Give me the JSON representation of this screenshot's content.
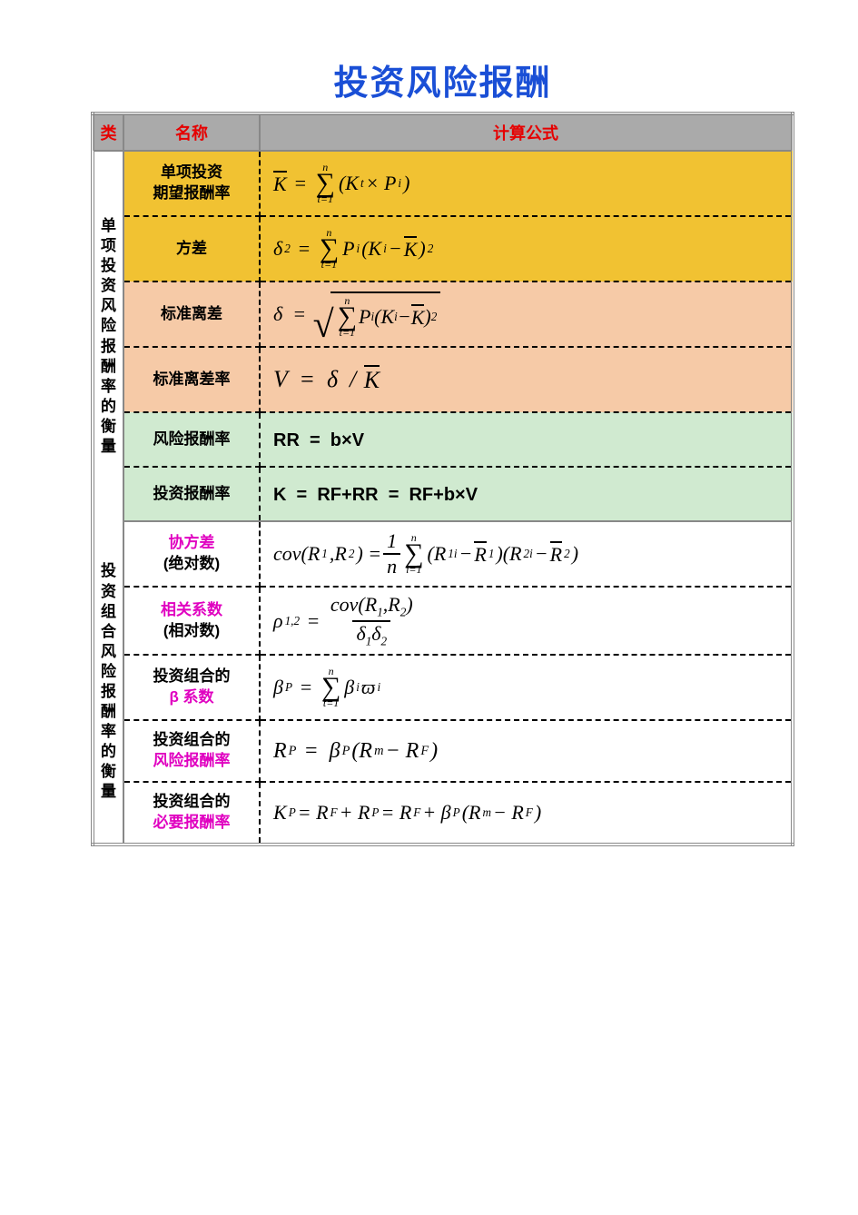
{
  "title": "投资风险报酬",
  "headers": {
    "cat": "类",
    "name": "名称",
    "formula": "计算公式"
  },
  "colors": {
    "title": "#1a4fd6",
    "header_bg": "#aaaaaa",
    "header_text": "#e60000",
    "row_yellow": "#f1c232",
    "row_peach": "#f6caa7",
    "row_green": "#d0ead0",
    "row_white": "#ffffff",
    "magenta": "#e000c0",
    "border": "#888888"
  },
  "sections": [
    {
      "cat_label": "单项投资风险报酬率的衡量",
      "rows": [
        {
          "name_lines": [
            "单项投资",
            "期望报酬率"
          ],
          "bg": "row_yellow",
          "formula_key": "f_expected"
        },
        {
          "name_lines": [
            "方差"
          ],
          "bg": "row_yellow",
          "formula_key": "f_var"
        },
        {
          "name_lines": [
            "标准离差"
          ],
          "bg": "row_peach",
          "formula_key": "f_std"
        },
        {
          "name_lines": [
            "标准离差率"
          ],
          "bg": "row_peach",
          "formula_key": "f_cv"
        },
        {
          "name_lines": [
            "风险报酬率"
          ],
          "bg": "row_green",
          "formula_key": "f_rr",
          "tight": true
        },
        {
          "name_lines": [
            "投资报酬率"
          ],
          "bg": "row_green",
          "formula_key": "f_k",
          "tight": true
        }
      ]
    },
    {
      "cat_label": "投资组合风险报酬率的衡量",
      "rows": [
        {
          "name_lines": [
            "协方差",
            "(绝对数)"
          ],
          "bg": "row_white",
          "magenta_lines": [
            0
          ],
          "formula_key": "f_cov"
        },
        {
          "name_lines": [
            "相关系数",
            "(相对数)"
          ],
          "bg": "row_white",
          "magenta_lines": [
            0
          ],
          "formula_key": "f_rho"
        },
        {
          "name_lines": [
            "投资组合的",
            "β 系数"
          ],
          "bg": "row_white",
          "magenta_lines": [
            1
          ],
          "formula_key": "f_beta"
        },
        {
          "name_lines": [
            "投资组合的",
            "风险报酬率"
          ],
          "bg": "row_white",
          "magenta_lines": [
            1
          ],
          "formula_key": "f_rp",
          "tight": true
        },
        {
          "name_lines": [
            "投资组合的",
            "必要报酬率"
          ],
          "bg": "row_white",
          "magenta_lines": [
            1
          ],
          "formula_key": "f_kp",
          "tight": true
        }
      ]
    }
  ],
  "formulas": {
    "f_expected": "K̄ = Σ(Kₜ×Pᵢ) for t=1..n",
    "f_var": "δ² = Σ Pᵢ(Kᵢ−K̄)² for t=1..n",
    "f_std": "δ = √[Σ Pᵢ(Kᵢ−K̄)² for t=1..n]",
    "f_cv": "V = δ / K̄",
    "f_rr": "RR = b×V",
    "f_k": "K = RF+RR = RF+b×V",
    "f_cov": "cov(R₁,R₂) = (1/n) Σ (R₁ᵢ−R̄₁)(R₂ᵢ−R̄₂) for i=1..n",
    "f_rho": "ρ₁,₂ = cov(R₁,R₂) / (δ₁δ₂)",
    "f_beta": "βₚ = Σ βᵢϖᵢ for t=1..n",
    "f_rp": "Rₚ = βₚ(Rₘ−R_F)",
    "f_kp": "Kₚ = R_F + Rₚ = R_F + βₚ(Rₘ−R_F)"
  },
  "typography": {
    "title_fontsize": 38,
    "header_fontsize": 18,
    "name_fontsize": 17,
    "formula_fontsize": 22,
    "formula_font": "Times New Roman italic"
  }
}
